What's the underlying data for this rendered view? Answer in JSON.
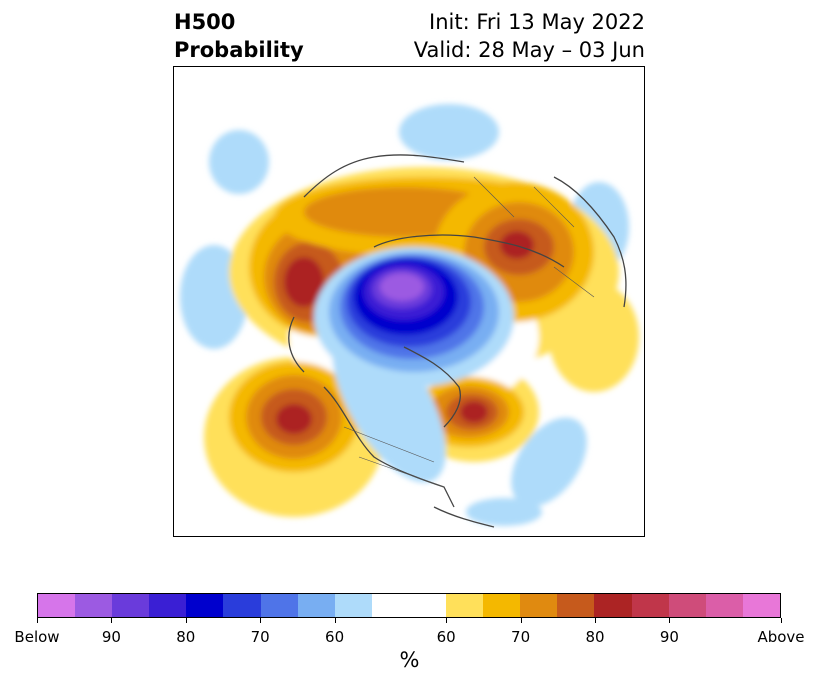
{
  "title": {
    "left_line1": "H500",
    "left_line2": "Probability",
    "right_line1": "Init: Fri 13 May 2022",
    "right_line2": "Valid: 28 May – 03 Jun"
  },
  "colorbar": {
    "unit": "%",
    "colors": [
      "#d675ea",
      "#9c5ae2",
      "#6a3bdb",
      "#3a1fd4",
      "#0000cd",
      "#2a3ddb",
      "#4f74e8",
      "#78aef2",
      "#aedbfa",
      "#ffffff",
      "#ffffff",
      "#ffe05a",
      "#f4b800",
      "#e08a10",
      "#c65a1c",
      "#ac2424",
      "#c0364a",
      "#cf4c7a",
      "#db5ea8",
      "#e877d8"
    ],
    "tick_labels": [
      "Below",
      "90",
      "80",
      "70",
      "60",
      "60",
      "70",
      "80",
      "90",
      "Above"
    ]
  },
  "map": {
    "projection": "north-polar-stereographic",
    "legend_colors": {
      "below_light": "#aedbfa",
      "below_medium": "#78aef2",
      "below_strong": "#0000cd",
      "below_extreme": "#9c5ae2",
      "above_light": "#ffe05a",
      "above_medium": "#f4b800",
      "above_strong": "#e08a10",
      "above_extreme": "#ac2424"
    }
  }
}
